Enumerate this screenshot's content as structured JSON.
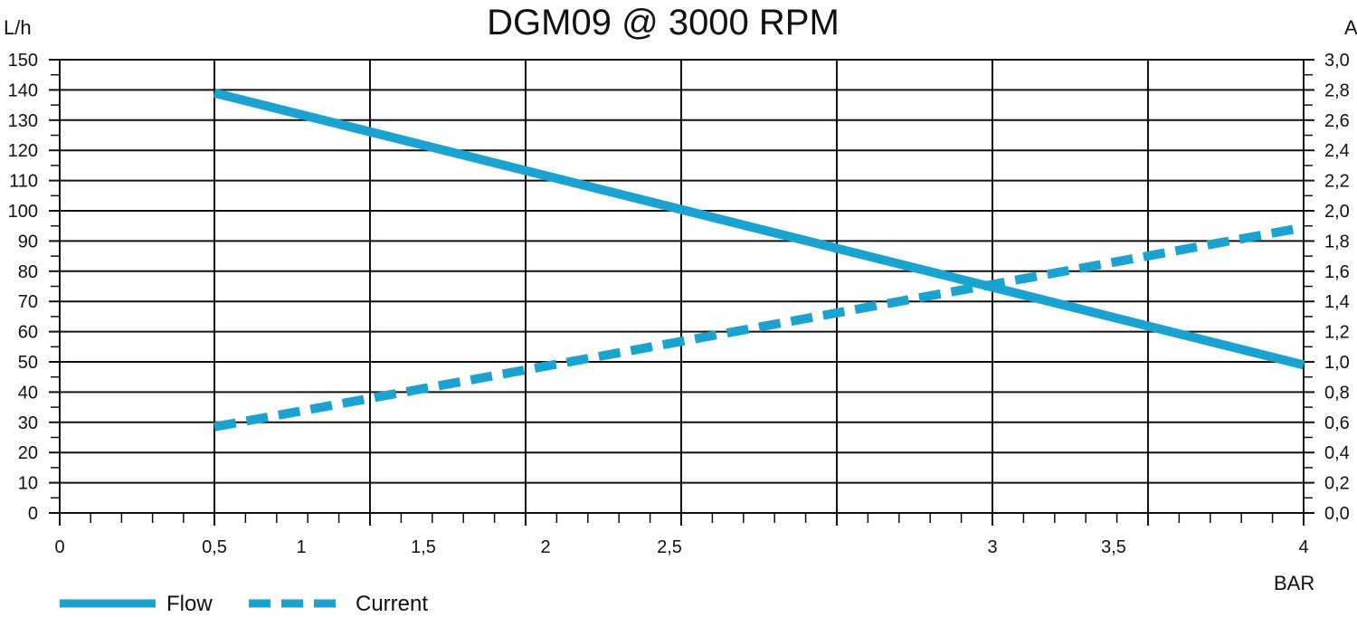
{
  "chart_data": {
    "type": "line",
    "title": "DGM09 @ 3000 RPM",
    "y_left_label": "L/h",
    "y_right_label": "A",
    "x_label": "BAR",
    "y_left_range": [
      0,
      150
    ],
    "y_right_range": [
      0,
      3
    ],
    "y_left_ticks": [
      "0",
      "10",
      "20",
      "30",
      "40",
      "50",
      "60",
      "70",
      "80",
      "90",
      "100",
      "110",
      "120",
      "130",
      "140",
      "150"
    ],
    "y_right_ticks": [
      "0,0",
      "0,2",
      "0,4",
      "0,6",
      "0,8",
      "1,0",
      "1,2",
      "1,4",
      "1,6",
      "1,8",
      "2,0",
      "2,2",
      "2,4",
      "2,6",
      "2,8",
      "3,0"
    ],
    "x_tick_labels": [
      "0",
      "0,5",
      "1",
      "1,5",
      "2",
      "2,5",
      "3",
      "3,5",
      "4"
    ],
    "grid": true,
    "legend_position": "bottom-left",
    "series": [
      {
        "name": "Flow",
        "axis": "left",
        "style": "solid",
        "color": "#1aa3d1",
        "points": [
          {
            "x": "0,5",
            "y": 139
          },
          {
            "x": "4",
            "y": 49
          }
        ]
      },
      {
        "name": "Current",
        "axis": "right",
        "style": "dashed",
        "color": "#1aa3d1",
        "points": [
          {
            "x": "0,5",
            "y": 0.57
          },
          {
            "x": "4",
            "y": 1.89
          }
        ]
      }
    ]
  }
}
